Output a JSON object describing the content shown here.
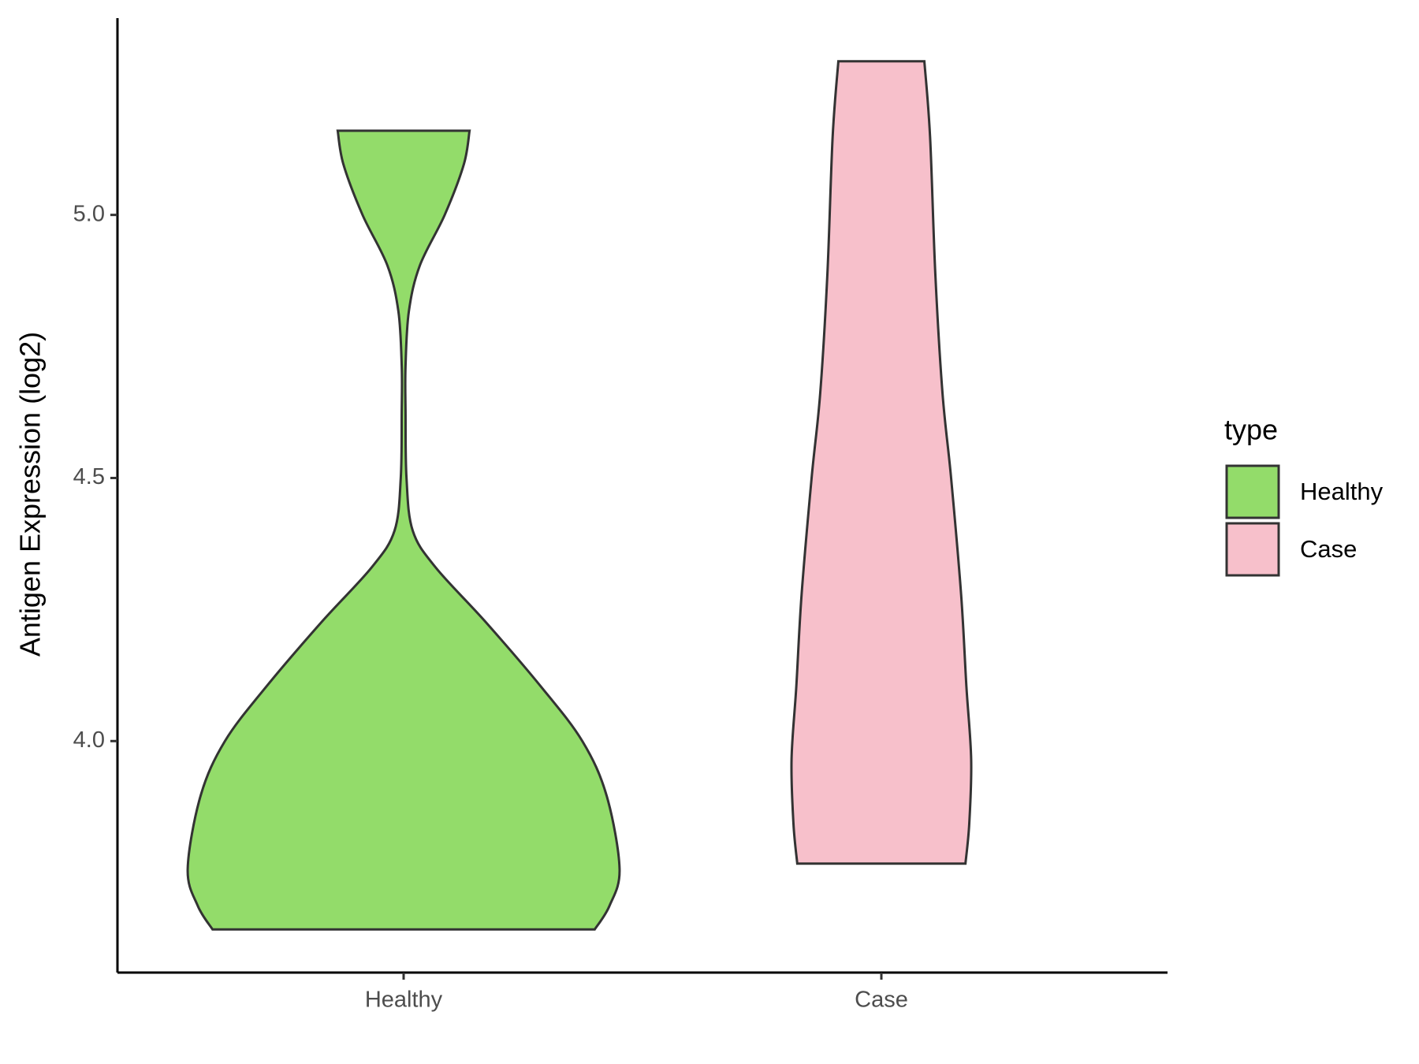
{
  "chart_data": {
    "type": "violin",
    "y_label": "Antigen Expression (log2)",
    "categories": [
      "Healthy",
      "Case"
    ],
    "ylim": [
      3.56,
      5.374
    ],
    "yticks": [
      {
        "value": 4,
        "label": "4.0"
      },
      4.5,
      {
        "value": 5,
        "label": "5.0"
      }
    ],
    "legend_title": "type",
    "legend_position": "right",
    "series": [
      {
        "name": "Healthy",
        "color": "#93dc6a",
        "y": [
          5.16,
          5.096,
          5.0,
          4.904,
          4.817,
          4.713,
          4.626,
          4.5,
          4.4,
          4.33,
          4.226,
          4.104,
          4.0,
          3.896,
          3.757,
          3.687,
          3.642
        ],
        "widths": [
          0.138,
          0.126,
          0.086,
          0.034,
          0.011,
          0.004,
          0.004,
          0.006,
          0.019,
          0.067,
          0.172,
          0.287,
          0.374,
          0.425,
          0.452,
          0.431,
          0.4
        ]
      },
      {
        "name": "Case",
        "color": "#f7c0cb",
        "y": [
          5.292,
          5.148,
          4.887,
          4.661,
          4.5,
          4.278,
          4.104,
          3.965,
          3.843,
          3.767
        ],
        "widths": [
          0.09,
          0.102,
          0.113,
          0.128,
          0.146,
          0.167,
          0.178,
          0.188,
          0.184,
          0.176
        ]
      }
    ]
  }
}
